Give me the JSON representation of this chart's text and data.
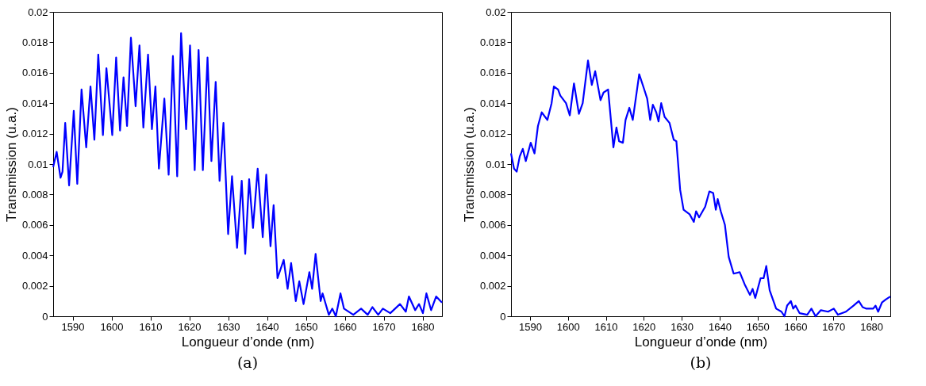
{
  "chart_data": [
    {
      "type": "line",
      "xlabel": "Longueur d’onde (nm)",
      "ylabel": "Transmission (u.a.)",
      "annotations": [
        "(a)"
      ],
      "xlim": [
        1585,
        1685
      ],
      "ylim": [
        0,
        0.02
      ],
      "xticks": [
        1590,
        1600,
        1610,
        1620,
        1630,
        1640,
        1650,
        1660,
        1670,
        1680
      ],
      "yticks": [
        0,
        0.002,
        0.004,
        0.006,
        0.008,
        0.01,
        0.012,
        0.014,
        0.016,
        0.018,
        0.02
      ],
      "series": [
        {
          "color": "#0000ff",
          "x": [
            1585,
            1585.9,
            1586.9,
            1587.4,
            1588.1,
            1589.1,
            1590.3,
            1591.2,
            1592.3,
            1593.5,
            1594.6,
            1595.6,
            1596.6,
            1597.8,
            1598.7,
            1600.2,
            1601.2,
            1602.2,
            1603.1,
            1604,
            1605,
            1606.2,
            1607.2,
            1608.2,
            1609.4,
            1610.4,
            1611.3,
            1612.2,
            1613.6,
            1614.7,
            1615.8,
            1616.9,
            1617.9,
            1619.2,
            1620.2,
            1621.4,
            1622.4,
            1623.5,
            1624.7,
            1625.7,
            1626.8,
            1627.8,
            1628.8,
            1630,
            1631,
            1632.3,
            1633.5,
            1634.4,
            1635.4,
            1636.4,
            1637.6,
            1638.9,
            1639.8,
            1640.9,
            1641.7,
            1642.7,
            1644.3,
            1645.3,
            1646.2,
            1647.4,
            1648.3,
            1649.4,
            1650.9,
            1651.6,
            1652.5,
            1653.8,
            1654.3,
            1655.9,
            1656.8,
            1657.7,
            1658.9,
            1659.8,
            1662.2,
            1664.2,
            1665.9,
            1667.1,
            1668.6,
            1669.8,
            1671.7,
            1674.2,
            1675.7,
            1676.5,
            1678.1,
            1679.1,
            1680.1,
            1681,
            1682.2,
            1683.5,
            1685
          ],
          "values": [
            0.0098,
            0.0108,
            0.0091,
            0.0095,
            0.0127,
            0.0086,
            0.0135,
            0.0087,
            0.0149,
            0.0111,
            0.0151,
            0.0116,
            0.0172,
            0.0119,
            0.0163,
            0.0119,
            0.017,
            0.0122,
            0.0157,
            0.0125,
            0.0183,
            0.0138,
            0.0178,
            0.0124,
            0.0172,
            0.0123,
            0.0151,
            0.0097,
            0.0143,
            0.0093,
            0.0171,
            0.0092,
            0.0186,
            0.0123,
            0.0178,
            0.0096,
            0.0175,
            0.0096,
            0.017,
            0.0102,
            0.0154,
            0.0089,
            0.0127,
            0.0054,
            0.0092,
            0.0045,
            0.0089,
            0.0041,
            0.009,
            0.0058,
            0.0097,
            0.0052,
            0.0093,
            0.0046,
            0.0073,
            0.0025,
            0.0037,
            0.0018,
            0.0035,
            0.001,
            0.0023,
            0.0008,
            0.0029,
            0.0018,
            0.0041,
            0.001,
            0.0015,
            0.0001,
            0.0005,
            0,
            0.0015,
            0.0005,
            0.0001,
            0.0005,
            0.0001,
            0.0006,
            0.0001,
            0.0005,
            0.0002,
            0.0008,
            0.0003,
            0.0013,
            0.0004,
            0.0008,
            0.0002,
            0.0015,
            0.0004,
            0.0013,
            0.0009
          ]
        }
      ]
    },
    {
      "type": "line",
      "xlabel": "Longueur d’onde (nm)",
      "ylabel": "Transmission (u.a.)",
      "annotations": [
        "(b)"
      ],
      "xlim": [
        1585,
        1685
      ],
      "ylim": [
        0,
        0.02
      ],
      "xticks": [
        1590,
        1600,
        1610,
        1620,
        1630,
        1640,
        1650,
        1660,
        1670,
        1680
      ],
      "yticks": [
        0,
        0.002,
        0.004,
        0.006,
        0.008,
        0.01,
        0.012,
        0.014,
        0.016,
        0.018,
        0.02
      ],
      "series": [
        {
          "color": "#0000ff",
          "x": [
            1585,
            1585.8,
            1586.5,
            1587.3,
            1588.1,
            1588.9,
            1590.2,
            1591.2,
            1592.1,
            1593.1,
            1594.6,
            1595.7,
            1596.3,
            1597.4,
            1598,
            1599.5,
            1600.5,
            1601.6,
            1602.9,
            1603.9,
            1605.3,
            1606.3,
            1607.2,
            1608.6,
            1609.4,
            1610.6,
            1612,
            1612.8,
            1613.5,
            1614.5,
            1615.2,
            1616.2,
            1617.1,
            1618.8,
            1620,
            1620.9,
            1621.7,
            1622.4,
            1623.3,
            1623.9,
            1624.6,
            1625.5,
            1626.8,
            1627.9,
            1628.6,
            1629.6,
            1630.5,
            1632.1,
            1633.2,
            1633.8,
            1634.6,
            1636.2,
            1637.3,
            1638.3,
            1639,
            1639.5,
            1640.3,
            1641.4,
            1642.4,
            1643.7,
            1645.3,
            1646.6,
            1648,
            1648.7,
            1649.4,
            1650.8,
            1651.6,
            1652.3,
            1653.2,
            1654.9,
            1656.3,
            1657.1,
            1657.8,
            1658.8,
            1659.4,
            1660,
            1661.1,
            1663.1,
            1664.2,
            1665.3,
            1666.7,
            1668.6,
            1670.1,
            1671.2,
            1673.3,
            1675.3,
            1676.7,
            1677.7,
            1678.7,
            1680.5,
            1681.1,
            1681.8,
            1682.8,
            1683.8,
            1685
          ],
          "values": [
            0.0107,
            0.0097,
            0.0095,
            0.0105,
            0.011,
            0.0102,
            0.0114,
            0.0107,
            0.0125,
            0.0134,
            0.0129,
            0.014,
            0.0151,
            0.0149,
            0.0145,
            0.014,
            0.0132,
            0.0153,
            0.0133,
            0.014,
            0.0168,
            0.0152,
            0.0161,
            0.0142,
            0.0147,
            0.0149,
            0.0111,
            0.0124,
            0.0115,
            0.0114,
            0.0129,
            0.0137,
            0.0129,
            0.0159,
            0.015,
            0.0143,
            0.0129,
            0.0139,
            0.0134,
            0.0128,
            0.014,
            0.0131,
            0.0127,
            0.0116,
            0.0115,
            0.0083,
            0.007,
            0.0067,
            0.0062,
            0.0069,
            0.0065,
            0.0072,
            0.0082,
            0.0081,
            0.007,
            0.0077,
            0.0069,
            0.006,
            0.0039,
            0.0028,
            0.0029,
            0.0021,
            0.0014,
            0.0018,
            0.0012,
            0.0025,
            0.0025,
            0.0033,
            0.0017,
            0.0005,
            0.0003,
            0,
            0.0007,
            0.001,
            0.0005,
            0.0007,
            0.0002,
            0.0001,
            0.0005,
            0,
            0.0004,
            0.0003,
            0.0005,
            0.0001,
            0.0003,
            0.0007,
            0.001,
            0.0006,
            0.0005,
            0.0005,
            0.0007,
            0.0003,
            0.0009,
            0.0011,
            0.0013
          ]
        }
      ]
    }
  ]
}
